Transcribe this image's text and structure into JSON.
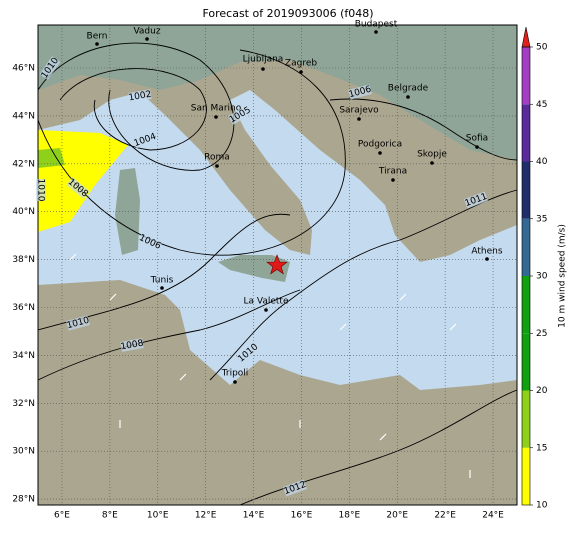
{
  "title": "Forecast of 2019093006 (f048)",
  "lat_ticks": [
    {
      "value": 28,
      "label": "28°N"
    },
    {
      "value": 30,
      "label": "30°N"
    },
    {
      "value": 32,
      "label": "32°N"
    },
    {
      "value": 34,
      "label": "34°N"
    },
    {
      "value": 36,
      "label": "36°N"
    },
    {
      "value": 38,
      "label": "38°N"
    },
    {
      "value": 40,
      "label": "40°N"
    },
    {
      "value": 42,
      "label": "42°N"
    },
    {
      "value": 44,
      "label": "44°N"
    },
    {
      "value": 46,
      "label": "46°N"
    }
  ],
  "lon_ticks": [
    {
      "value": 6,
      "label": "6°E"
    },
    {
      "value": 8,
      "label": "8°E"
    },
    {
      "value": 10,
      "label": "10°E"
    },
    {
      "value": 12,
      "label": "12°E"
    },
    {
      "value": 14,
      "label": "14°E"
    },
    {
      "value": 16,
      "label": "16°E"
    },
    {
      "value": 18,
      "label": "18°E"
    },
    {
      "value": 20,
      "label": "20°E"
    },
    {
      "value": 22,
      "label": "22°E"
    },
    {
      "value": 24,
      "label": "24°E"
    }
  ],
  "cities": [
    "Bern",
    "Vaduz",
    "Budapest",
    "Ljubljana",
    "Zagreb",
    "San Marino",
    "Belgrade",
    "Sarajevo",
    "Roma",
    "Podgorica",
    "Skopje",
    "Sofia",
    "Tirana",
    "Athens",
    "Tunis",
    "La Valette",
    "Tripoli"
  ],
  "isobar_labels": [
    "1010",
    "1002",
    "1004",
    "1005",
    "1008",
    "1010",
    "1006",
    "1010",
    "1008",
    "1010",
    "1006",
    "1011",
    "1012"
  ],
  "colorbar": {
    "label": "10 m wind speed (m/s)",
    "ticks": [
      10,
      15,
      20,
      25,
      30,
      35,
      40,
      45,
      50
    ],
    "colors": [
      "#ffff00",
      "#8fd11a",
      "#10a010",
      "#10a010",
      "#336a94",
      "#1f2e6a",
      "#5a2a9a",
      "#a23fc4"
    ],
    "extend_color": "#e0201a"
  }
}
